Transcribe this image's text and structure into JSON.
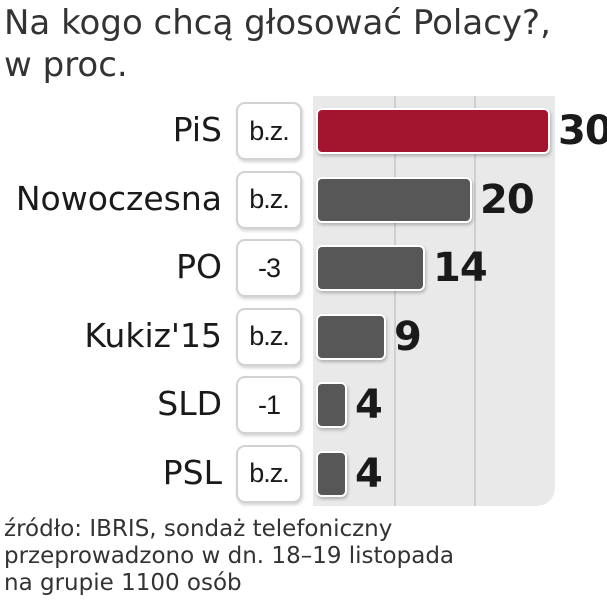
{
  "title_line1": "Na kogo chcą głosować Polacy?,",
  "title_line2": "w proc.",
  "source_line1": "źródło: IBRIS, sondaż telefoniczny",
  "source_line2": "przeprowadzono w dn. 18–19 listopada",
  "source_line3": "na grupie 1100 osób",
  "colors": {
    "highlight": "#a3152e",
    "bar": "#575757",
    "plot_bg": "#e9e9e9"
  },
  "chart_data": {
    "type": "bar",
    "orientation": "horizontal",
    "unit": "%",
    "categories": [
      "PiS",
      "Nowoczesna",
      "PO",
      "Kukiz'15",
      "SLD",
      "PSL"
    ],
    "values": [
      30,
      20,
      14,
      9,
      4,
      4
    ],
    "changes": [
      "b.z.",
      "b.z.",
      "-3",
      "b.z.",
      "-1",
      "b.z."
    ],
    "highlight_index": 0,
    "xlim": [
      0,
      30
    ],
    "grid": true
  }
}
